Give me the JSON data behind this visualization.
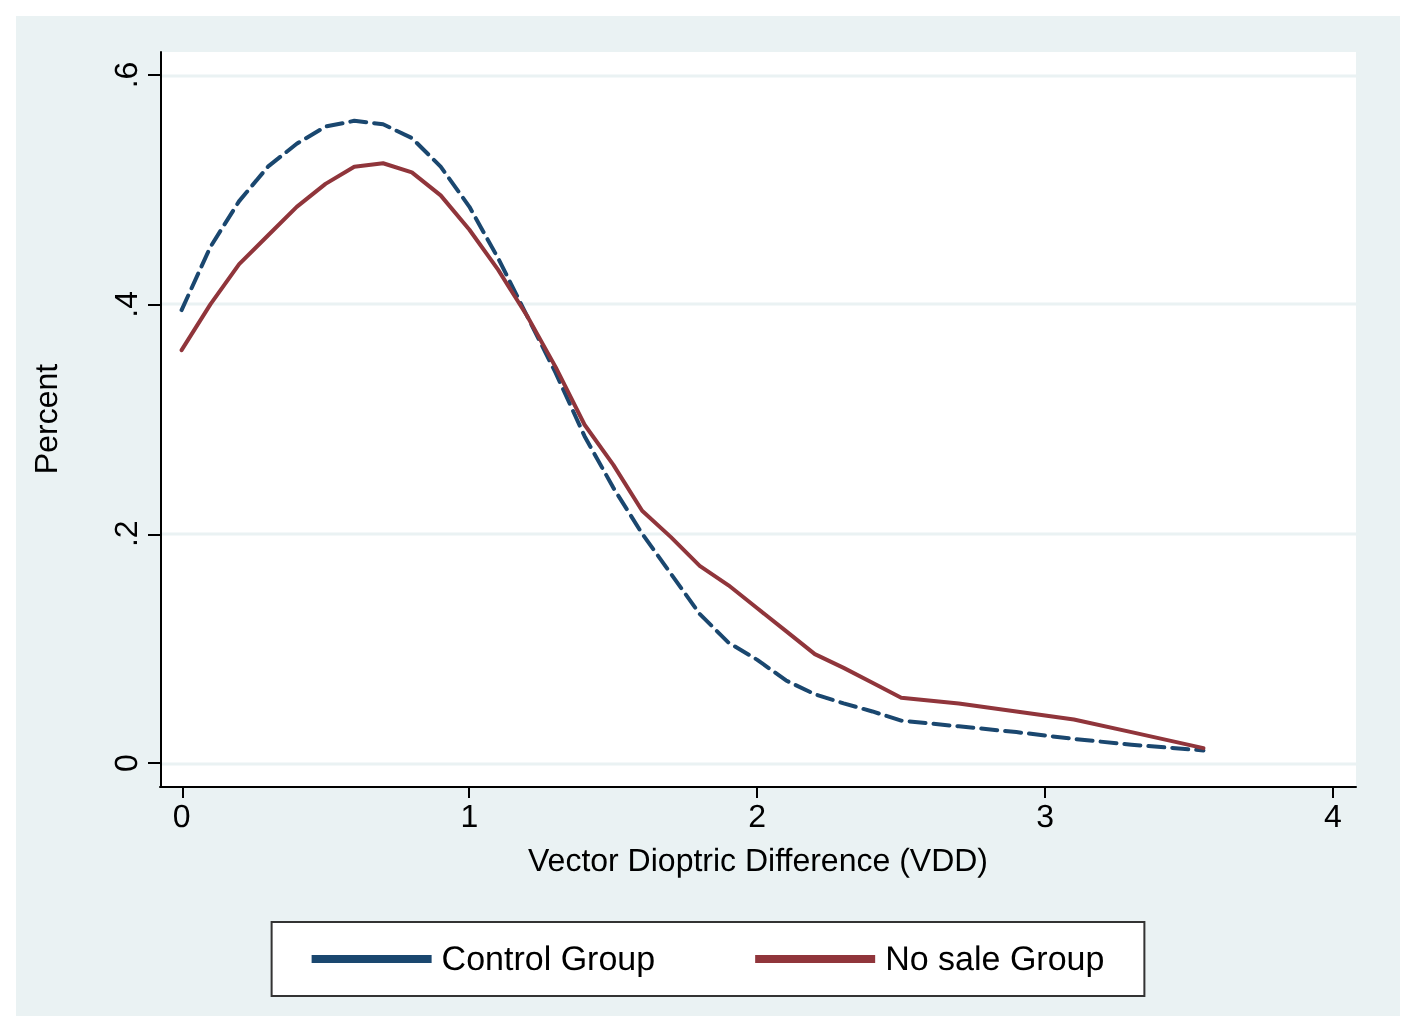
{
  "chart_data": {
    "type": "line",
    "xlabel": "Vector Dioptric Difference (VDD)",
    "ylabel": "Percent",
    "xlim": [
      -0.075,
      4.08
    ],
    "ylim": [
      -0.02,
      0.62
    ],
    "xticks": [
      0,
      1,
      2,
      3,
      4
    ],
    "yticks": [
      {
        "value": 0,
        "label": "0"
      },
      {
        "value": 0.2,
        "label": ".2"
      },
      {
        "value": 0.4,
        "label": ".4"
      },
      {
        "value": 0.6,
        "label": ".6"
      }
    ],
    "grid": "y",
    "legend": "bottom",
    "marker": "none",
    "x": [
      0,
      0.1,
      0.2,
      0.3,
      0.4,
      0.5,
      0.6,
      0.7,
      0.8,
      0.9,
      1.0,
      1.1,
      1.2,
      1.3,
      1.4,
      1.5,
      1.6,
      1.7,
      1.8,
      1.9,
      2.0,
      2.1,
      2.2,
      2.3,
      2.4,
      2.5,
      2.7,
      2.9,
      3.1,
      3.3,
      3.55
    ],
    "series": [
      {
        "name": "Control Group",
        "color": "#1a476f",
        "line_style": "dashed",
        "values": [
          0.395,
          0.45,
          0.49,
          0.52,
          0.54,
          0.555,
          0.56,
          0.557,
          0.545,
          0.52,
          0.485,
          0.44,
          0.39,
          0.34,
          0.285,
          0.24,
          0.2,
          0.165,
          0.13,
          0.105,
          0.09,
          0.072,
          0.06,
          0.052,
          0.045,
          0.037,
          0.032,
          0.027,
          0.021,
          0.016,
          0.011
        ]
      },
      {
        "name": "No sale Group",
        "color": "#90353b",
        "line_style": "solid",
        "values": [
          0.36,
          0.4,
          0.435,
          0.46,
          0.485,
          0.505,
          0.52,
          0.523,
          0.515,
          0.495,
          0.465,
          0.43,
          0.39,
          0.345,
          0.295,
          0.26,
          0.22,
          0.197,
          0.172,
          0.155,
          0.135,
          0.115,
          0.095,
          0.083,
          0.07,
          0.057,
          0.052,
          0.045,
          0.038,
          0.027,
          0.013
        ]
      }
    ]
  }
}
